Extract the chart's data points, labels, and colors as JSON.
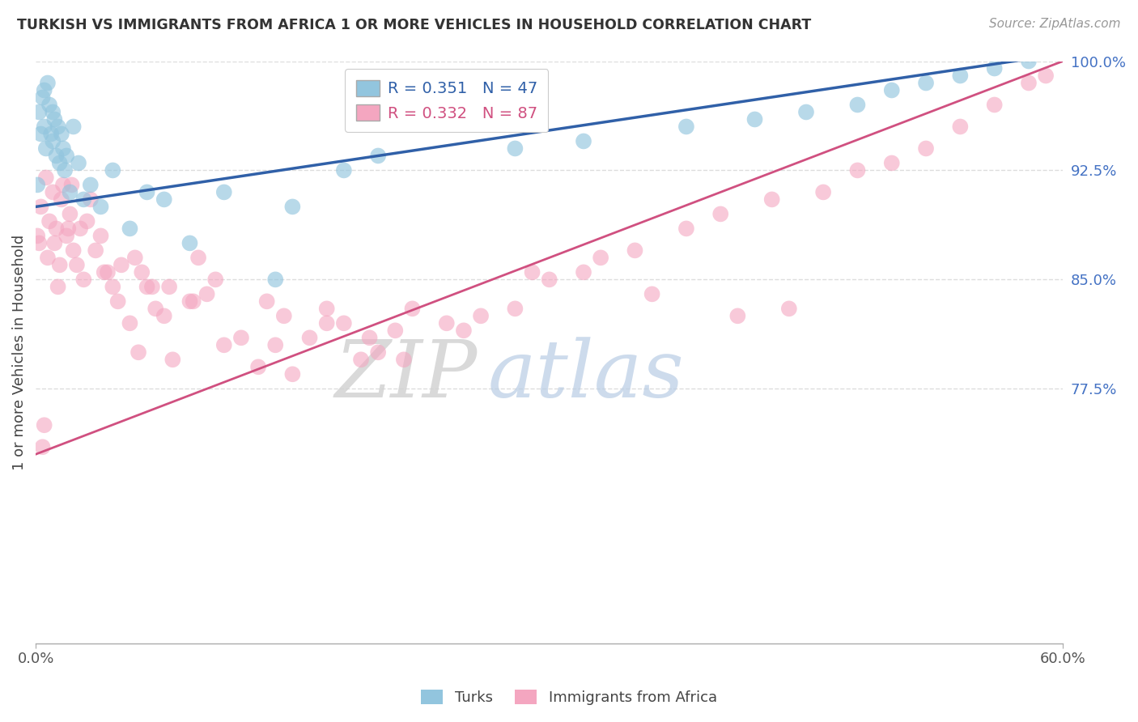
{
  "title": "TURKISH VS IMMIGRANTS FROM AFRICA 1 OR MORE VEHICLES IN HOUSEHOLD CORRELATION CHART",
  "source": "Source: ZipAtlas.com",
  "ylabel": "1 or more Vehicles in Household",
  "xlim": [
    0.0,
    60.0
  ],
  "ylim": [
    60.0,
    100.0
  ],
  "yticks": [
    77.5,
    85.0,
    92.5,
    100.0
  ],
  "turks_R": 0.351,
  "turks_N": 47,
  "africa_R": 0.332,
  "africa_N": 87,
  "turks_color": "#92c5de",
  "africa_color": "#f4a6c0",
  "turks_line_color": "#3060a8",
  "africa_line_color": "#d05080",
  "background_color": "#ffffff",
  "grid_color": "#cccccc",
  "legend_turks": "Turks",
  "legend_africa": "Immigrants from Africa",
  "turks_scatter_x": [
    0.1,
    0.2,
    0.3,
    0.4,
    0.5,
    0.5,
    0.6,
    0.7,
    0.8,
    0.9,
    1.0,
    1.0,
    1.1,
    1.2,
    1.3,
    1.4,
    1.5,
    1.6,
    1.7,
    1.8,
    2.0,
    2.2,
    2.5,
    2.8,
    3.2,
    3.8,
    4.5,
    5.5,
    6.5,
    7.5,
    9.0,
    11.0,
    14.0,
    15.0,
    18.0,
    20.0,
    28.0,
    32.0,
    38.0,
    42.0,
    45.0,
    48.0,
    50.0,
    52.0,
    54.0,
    56.0,
    58.0
  ],
  "turks_scatter_y": [
    91.5,
    96.5,
    95.0,
    97.5,
    98.0,
    95.5,
    94.0,
    98.5,
    97.0,
    95.0,
    96.5,
    94.5,
    96.0,
    93.5,
    95.5,
    93.0,
    95.0,
    94.0,
    92.5,
    93.5,
    91.0,
    95.5,
    93.0,
    90.5,
    91.5,
    90.0,
    92.5,
    88.5,
    91.0,
    90.5,
    87.5,
    91.0,
    85.0,
    90.0,
    92.5,
    93.5,
    94.0,
    94.5,
    95.5,
    96.0,
    96.5,
    97.0,
    98.0,
    98.5,
    99.0,
    99.5,
    100.0
  ],
  "africa_scatter_x": [
    0.1,
    0.2,
    0.3,
    0.5,
    0.6,
    0.7,
    0.8,
    1.0,
    1.1,
    1.2,
    1.4,
    1.5,
    1.6,
    1.8,
    2.0,
    2.2,
    2.4,
    2.6,
    2.8,
    3.0,
    3.5,
    4.0,
    4.5,
    5.0,
    5.5,
    6.0,
    6.5,
    7.0,
    7.5,
    8.0,
    9.0,
    10.0,
    11.0,
    12.0,
    13.0,
    14.0,
    15.0,
    16.0,
    17.0,
    18.0,
    19.0,
    20.0,
    21.0,
    22.0,
    24.0,
    26.0,
    28.0,
    30.0,
    32.0,
    35.0,
    38.0,
    40.0,
    43.0,
    46.0,
    48.0,
    50.0,
    52.0,
    54.0,
    56.0,
    58.0,
    59.0,
    0.4,
    1.3,
    2.1,
    3.2,
    4.8,
    6.8,
    9.5,
    13.5,
    17.0,
    21.5,
    4.2,
    6.2,
    9.2,
    1.9,
    3.8,
    5.8,
    7.8,
    10.5,
    14.5,
    19.5,
    25.0,
    29.0,
    33.0,
    36.0,
    41.0,
    44.0
  ],
  "africa_scatter_y": [
    88.0,
    87.5,
    90.0,
    75.0,
    92.0,
    86.5,
    89.0,
    91.0,
    87.5,
    88.5,
    86.0,
    90.5,
    91.5,
    88.0,
    89.5,
    87.0,
    86.0,
    88.5,
    85.0,
    89.0,
    87.0,
    85.5,
    84.5,
    86.0,
    82.0,
    80.0,
    84.5,
    83.0,
    82.5,
    79.5,
    83.5,
    84.0,
    80.5,
    81.0,
    79.0,
    80.5,
    78.5,
    81.0,
    83.0,
    82.0,
    79.5,
    80.0,
    81.5,
    83.0,
    82.0,
    82.5,
    83.0,
    85.0,
    85.5,
    87.0,
    88.5,
    89.5,
    90.5,
    91.0,
    92.5,
    93.0,
    94.0,
    95.5,
    97.0,
    98.5,
    99.0,
    73.5,
    84.5,
    91.5,
    90.5,
    83.5,
    84.5,
    86.5,
    83.5,
    82.0,
    79.5,
    85.5,
    85.5,
    83.5,
    88.5,
    88.0,
    86.5,
    84.5,
    85.0,
    82.5,
    81.0,
    81.5,
    85.5,
    86.5,
    84.0,
    82.5,
    83.0
  ]
}
